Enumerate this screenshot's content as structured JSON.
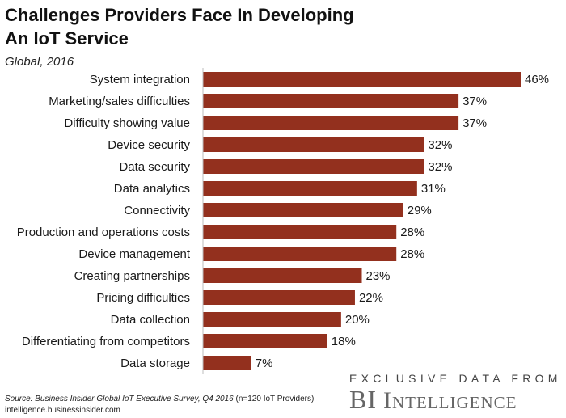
{
  "header": {
    "title": "Challenges Providers Face In Developing An IoT Service",
    "subtitle": "Global, 2016"
  },
  "chart_data": {
    "type": "bar",
    "orientation": "horizontal",
    "categories": [
      "System integration",
      "Marketing/sales difficulties",
      "Difficulty showing value",
      "Device security",
      "Data security",
      "Data analytics",
      "Connectivity",
      "Production and operations costs",
      "Device management",
      "Creating partnerships",
      "Pricing difficulties",
      "Data collection",
      "Differentiating from competitors",
      "Data storage"
    ],
    "values": [
      46,
      37,
      37,
      32,
      32,
      31,
      29,
      28,
      28,
      23,
      22,
      20,
      18,
      7
    ],
    "value_labels": [
      "46%",
      "37%",
      "37%",
      "32%",
      "32%",
      "31%",
      "29%",
      "28%",
      "28%",
      "23%",
      "22%",
      "20%",
      "18%",
      "7%"
    ],
    "xlim": [
      0,
      46
    ],
    "grid": false,
    "bar_color": "#93301e"
  },
  "footer": {
    "source_prefix": "Source: Business Insider Global IoT Executive Survey, Q4 2016",
    "source_suffix": " (n=120 IoT Providers)",
    "url": "intelligence.businessinsider.com",
    "brand_tagline": "EXCLUSIVE DATA FROM",
    "brand_bi": "BI",
    "brand_name": "Intelligence"
  }
}
